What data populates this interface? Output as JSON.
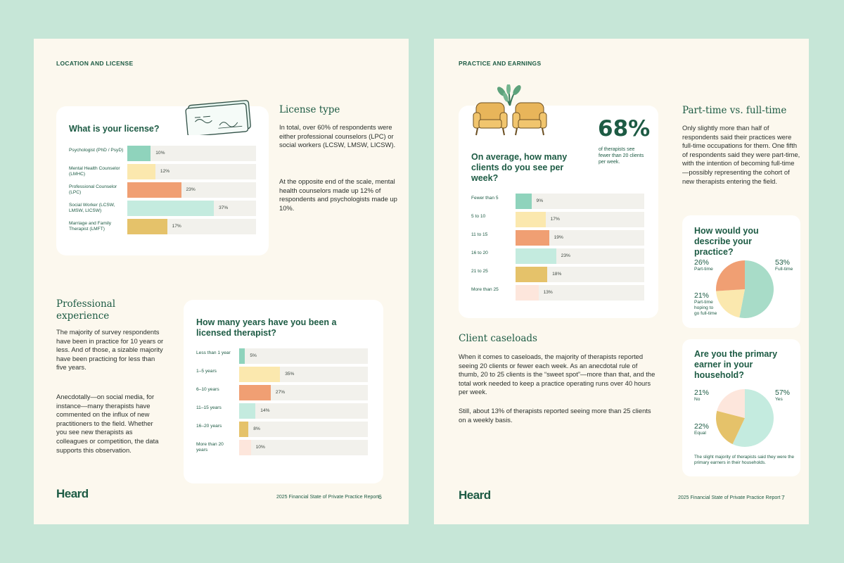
{
  "page6": {
    "eyebrow": "LOCATION AND LICENSE",
    "license_card": {
      "title": "What is your license?",
      "rows": [
        {
          "label": "Psychologist (PhD / PsyD)",
          "value": 10,
          "pct": "10%",
          "color": "#8fd3bc"
        },
        {
          "label": "Mental Health Counselor (LMHC)",
          "value": 12,
          "pct": "12%",
          "color": "#fbe8ae"
        },
        {
          "label": "Professional Counselor (LPC)",
          "value": 23,
          "pct": "23%",
          "color": "#f09f73"
        },
        {
          "label": "Social Worker (LCSW, LMSW, LICSW)",
          "value": 37,
          "pct": "37%",
          "color": "#c4ebdf"
        },
        {
          "label": "Marriage and Family Therapist (LMFT)",
          "value": 17,
          "pct": "17%",
          "color": "#e5c26a"
        }
      ]
    },
    "license_type": {
      "heading": "License type",
      "p1": "In total, over 60% of respondents were either professional counselors (LPC) or social workers (LCSW, LMSW, LICSW).",
      "p2": "At the opposite end of the scale, mental health counselors made up 12% of respondents and psychologists made up 10%."
    },
    "experience": {
      "heading": "Professional experience",
      "p1": "The majority of survey respondents have been in practice for 10 years or less. And of those, a sizable majority have been practicing for less than five years.",
      "p2": "Anecdotally—on social media, for instance—many therapists have commented on the influx of new practitioners to the field. Whether you see new therapists as colleagues or competition, the data supports this observation."
    },
    "years_card": {
      "title": "How many years have you been a licensed therapist?",
      "rows": [
        {
          "label": "Less than 1 year",
          "value": 5,
          "pct": "5%",
          "color": "#8fd3bc"
        },
        {
          "label": "1–5 years",
          "value": 35,
          "pct": "35%",
          "color": "#fbe8ae"
        },
        {
          "label": "6–10 years",
          "value": 27,
          "pct": "27%",
          "color": "#f09f73"
        },
        {
          "label": "11–15 years",
          "value": 14,
          "pct": "14%",
          "color": "#c4ebdf"
        },
        {
          "label": "16–20 years",
          "value": 8,
          "pct": "8%",
          "color": "#e5c26a"
        },
        {
          "label": "More than 20 years",
          "value": 10,
          "pct": "10%",
          "color": "#fde6dc"
        }
      ]
    },
    "logo": "Heard",
    "footer": "2025 Financial State of Private Practice Report",
    "page_number": "6"
  },
  "page7": {
    "eyebrow": "PRACTICE AND EARNINGS",
    "clients_card": {
      "stat": "68%",
      "stat_caption": "of therapists see fewer than 20 clients per week.",
      "title": "On average, how many clients do you see per week?",
      "rows": [
        {
          "label": "Fewer than 5",
          "value": 9,
          "pct": "9%",
          "color": "#8fd3bc"
        },
        {
          "label": "5 to 10",
          "value": 17,
          "pct": "17%",
          "color": "#fbe8ae"
        },
        {
          "label": "11 to 15",
          "value": 19,
          "pct": "19%",
          "color": "#f09f73"
        },
        {
          "label": "16 to 20",
          "value": 23,
          "pct": "23%",
          "color": "#c4ebdf"
        },
        {
          "label": "21 to 25",
          "value": 18,
          "pct": "18%",
          "color": "#e5c26a"
        },
        {
          "label": "More than 25",
          "value": 13,
          "pct": "13%",
          "color": "#fde6dc"
        }
      ]
    },
    "caseloads": {
      "heading": "Client caseloads",
      "p1": "When it comes to caseloads, the majority of therapists reported seeing 20 clients or fewer each week. As an anecdotal rule of thumb, 20 to 25 clients is the “sweet spot”—more than that, and the total work needed to keep a practice operating runs over 40 hours per week.",
      "p2": "Still, about 13% of therapists reported seeing more than 25 clients on a weekly basis."
    },
    "parttime": {
      "heading": "Part-time vs. full-time",
      "p1": "Only slightly more than half of respondents said their practices were full-time occupations for them. One fifth of respondents said they were part-time, with the intention of becoming full-time—possibly representing the cohort of new therapists entering the field."
    },
    "practice_card": {
      "title": "How would you describe your practice?",
      "slices": [
        {
          "label": "Full-time",
          "value": 53,
          "pct": "53%",
          "color": "#a8dcc8"
        },
        {
          "label": "Part-time hoping to go full-time",
          "value": 21,
          "pct": "21%",
          "color": "#fbe8ae"
        },
        {
          "label": "Part-time",
          "value": 26,
          "pct": "26%",
          "color": "#f09f73"
        }
      ]
    },
    "earner_card": {
      "title": "Are you the primary earner in your household?",
      "slices": [
        {
          "label": "Yes",
          "value": 57,
          "pct": "57%",
          "color": "#c4ebdf"
        },
        {
          "label": "Equal",
          "value": 22,
          "pct": "22%",
          "color": "#e5c26a"
        },
        {
          "label": "No",
          "value": 21,
          "pct": "21%",
          "color": "#fde6dc"
        }
      ],
      "caption": "The slight majority of therapists said they were the primary earners in their households."
    },
    "logo": "Heard",
    "footer": "2025 Financial State of Private Practice Report",
    "page_number": "7"
  }
}
